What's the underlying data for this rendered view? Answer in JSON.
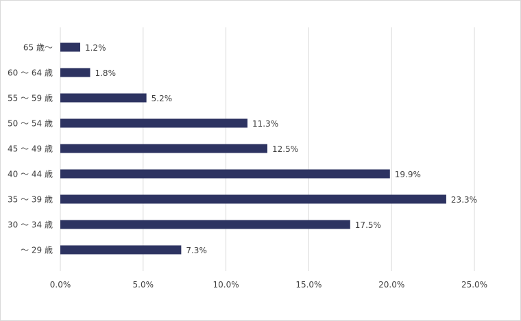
{
  "chart_data": {
    "type": "bar",
    "orientation": "horizontal",
    "categories": [
      "65 歳〜",
      "60 〜 64 歳",
      "55 〜 59 歳",
      "50 〜 54 歳",
      "45 〜 49 歳",
      "40 〜 44 歳",
      "35 〜 39 歳",
      "30 〜 34 歳",
      "〜 29 歳"
    ],
    "values": [
      1.2,
      1.8,
      5.2,
      11.3,
      12.5,
      19.9,
      23.3,
      17.5,
      7.3
    ],
    "data_labels": [
      "1.2%",
      "1.8%",
      "5.2%",
      "11.3%",
      "12.5%",
      "19.9%",
      "23.3%",
      "17.5%",
      "7.3%"
    ],
    "x_ticks": [
      0,
      5,
      10,
      15,
      20,
      25
    ],
    "x_tick_labels": [
      "0.0%",
      "5.0%",
      "10.0%",
      "15.0%",
      "20.0%",
      "25.0%"
    ],
    "xlim": [
      0,
      25
    ],
    "title": "",
    "xlabel": "",
    "ylabel": "",
    "grid": "vertical",
    "legend": "none",
    "colors": {
      "bar": "#2d3361",
      "grid": "#d9d9d9",
      "text": "#404040"
    }
  }
}
